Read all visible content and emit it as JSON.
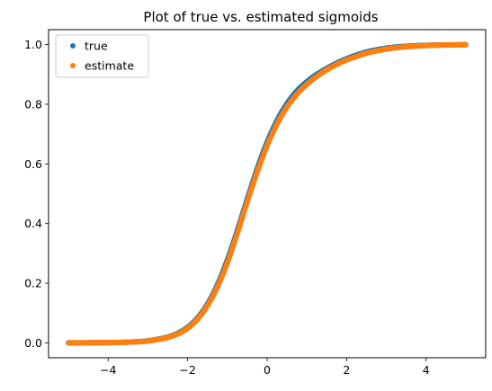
{
  "chart_data": {
    "type": "scatter",
    "title": "Plot of true vs. estimated sigmoids",
    "xlabel": "",
    "ylabel": "",
    "xlim": [
      -5.5,
      5.5
    ],
    "ylim": [
      -0.05,
      1.05
    ],
    "xticks": [
      -4,
      -2,
      0,
      2,
      4
    ],
    "xtick_labels": [
      "−4",
      "−2",
      "0",
      "2",
      "4"
    ],
    "yticks": [
      0.0,
      0.2,
      0.4,
      0.6,
      0.8,
      1.0
    ],
    "ytick_labels": [
      "0.0",
      "0.2",
      "0.4",
      "0.6",
      "0.8",
      "1.0"
    ],
    "grid": false,
    "legend_position": "top-left",
    "series": [
      {
        "name": "true",
        "color": "#1f77b4",
        "x": [
          -5.0,
          -4.5,
          -4.0,
          -3.5,
          -3.0,
          -2.5,
          -2.25,
          -2.0,
          -1.75,
          -1.5,
          -1.25,
          -1.0,
          -0.75,
          -0.5,
          -0.25,
          0.0,
          0.25,
          0.5,
          0.75,
          1.0,
          1.25,
          1.5,
          1.75,
          2.0,
          2.5,
          3.0,
          3.5,
          4.0,
          4.5,
          5.0
        ],
        "y": [
          0.0001,
          0.0003,
          0.0008,
          0.0024,
          0.0069,
          0.0196,
          0.032,
          0.0523,
          0.0838,
          0.1303,
          0.1952,
          0.2789,
          0.3775,
          0.4826,
          0.5842,
          0.6733,
          0.7458,
          0.8022,
          0.8445,
          0.8756,
          0.9002,
          0.9202,
          0.9376,
          0.9526,
          0.975,
          0.988,
          0.9944,
          0.9975,
          0.9989,
          0.9995
        ]
      },
      {
        "name": "estimate",
        "color": "#ff7f0e",
        "x": [
          -5.0,
          -4.5,
          -4.0,
          -3.5,
          -3.0,
          -2.5,
          -2.25,
          -2.0,
          -1.75,
          -1.5,
          -1.25,
          -1.0,
          -0.75,
          -0.5,
          -0.25,
          0.0,
          0.25,
          0.5,
          0.75,
          1.0,
          1.25,
          1.5,
          1.75,
          2.0,
          2.5,
          3.0,
          3.5,
          4.0,
          4.5,
          5.0
        ],
        "y": [
          0.0001,
          0.0003,
          0.0008,
          0.0022,
          0.0063,
          0.0181,
          0.0298,
          0.049,
          0.0795,
          0.1247,
          0.1874,
          0.2689,
          0.3672,
          0.4725,
          0.5725,
          0.6607,
          0.7338,
          0.7907,
          0.8337,
          0.8667,
          0.8934,
          0.9155,
          0.9335,
          0.9482,
          0.9707,
          0.9849,
          0.9927,
          0.9967,
          0.9986,
          0.9994
        ]
      }
    ]
  }
}
